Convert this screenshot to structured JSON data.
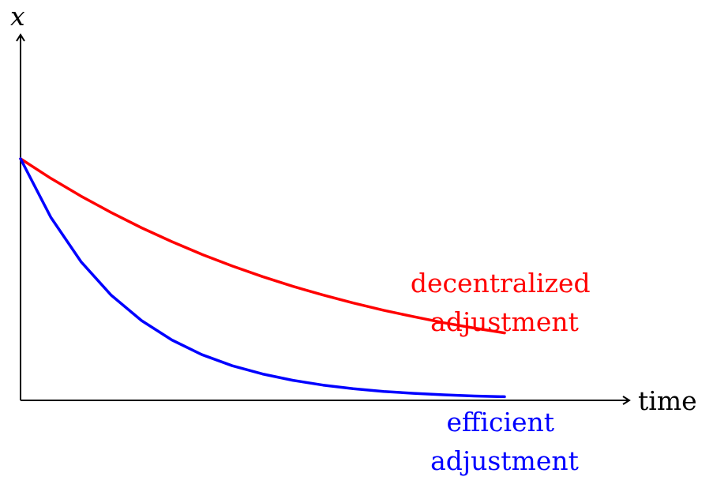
{
  "chart_data": {
    "type": "line",
    "title": "",
    "xlabel": "time",
    "ylabel": "x",
    "xlim": [
      0,
      1
    ],
    "ylim": [
      0,
      1
    ],
    "grid": false,
    "ticks": false,
    "series": [
      {
        "name": "decentralized adjustment",
        "label_lines": [
          "decentralized",
          "adjustment"
        ],
        "color": "#ff0000",
        "x": [
          0.0,
          0.05,
          0.1,
          0.15,
          0.2,
          0.25,
          0.3,
          0.35,
          0.4,
          0.45,
          0.5,
          0.55,
          0.6,
          0.65,
          0.7,
          0.75,
          0.8
        ],
        "y": [
          1.0,
          0.919,
          0.845,
          0.777,
          0.714,
          0.657,
          0.604,
          0.556,
          0.512,
          0.472,
          0.436,
          0.403,
          0.373,
          0.346,
          0.321,
          0.299,
          0.279
        ]
      },
      {
        "name": "efficient adjustment",
        "label_lines": [
          "efficient",
          "adjustment"
        ],
        "color": "#0000ff",
        "x": [
          0.0,
          0.05,
          0.1,
          0.15,
          0.2,
          0.25,
          0.3,
          0.35,
          0.4,
          0.45,
          0.5,
          0.55,
          0.6,
          0.65,
          0.7,
          0.75,
          0.8
        ],
        "y": [
          1.0,
          0.758,
          0.574,
          0.435,
          0.33,
          0.25,
          0.189,
          0.143,
          0.109,
          0.083,
          0.063,
          0.048,
          0.037,
          0.029,
          0.023,
          0.018,
          0.015
        ]
      }
    ]
  }
}
